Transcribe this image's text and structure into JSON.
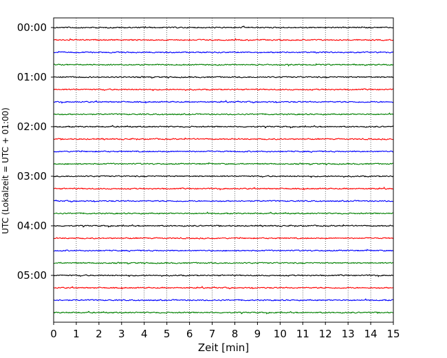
{
  "chart_data": {
    "type": "line",
    "title": "",
    "xlabel": "Zeit  [min]",
    "ylabel": "UTC (Lokalzeit = UTC + 01:00)",
    "xlim": [
      0,
      15
    ],
    "x_ticks": [
      0,
      1,
      2,
      3,
      4,
      5,
      6,
      7,
      8,
      9,
      10,
      11,
      12,
      13,
      14,
      15
    ],
    "y_tick_labels": [
      "00:00",
      "01:00",
      "02:00",
      "03:00",
      "04:00",
      "05:00"
    ],
    "grid": "vertical dotted lines at each x tick",
    "trace_colors": [
      "#000000",
      "#ff0000",
      "#0000ff",
      "#008000"
    ],
    "trace_start_hours": [
      0,
      0.25,
      0.5,
      0.75,
      1,
      1.25,
      1.5,
      1.75,
      2,
      2.25,
      2.5,
      2.75,
      3,
      3.25,
      3.5,
      3.75,
      4,
      4.25,
      4.5,
      4.75,
      5,
      5.25,
      5.5,
      5.75
    ]
  }
}
